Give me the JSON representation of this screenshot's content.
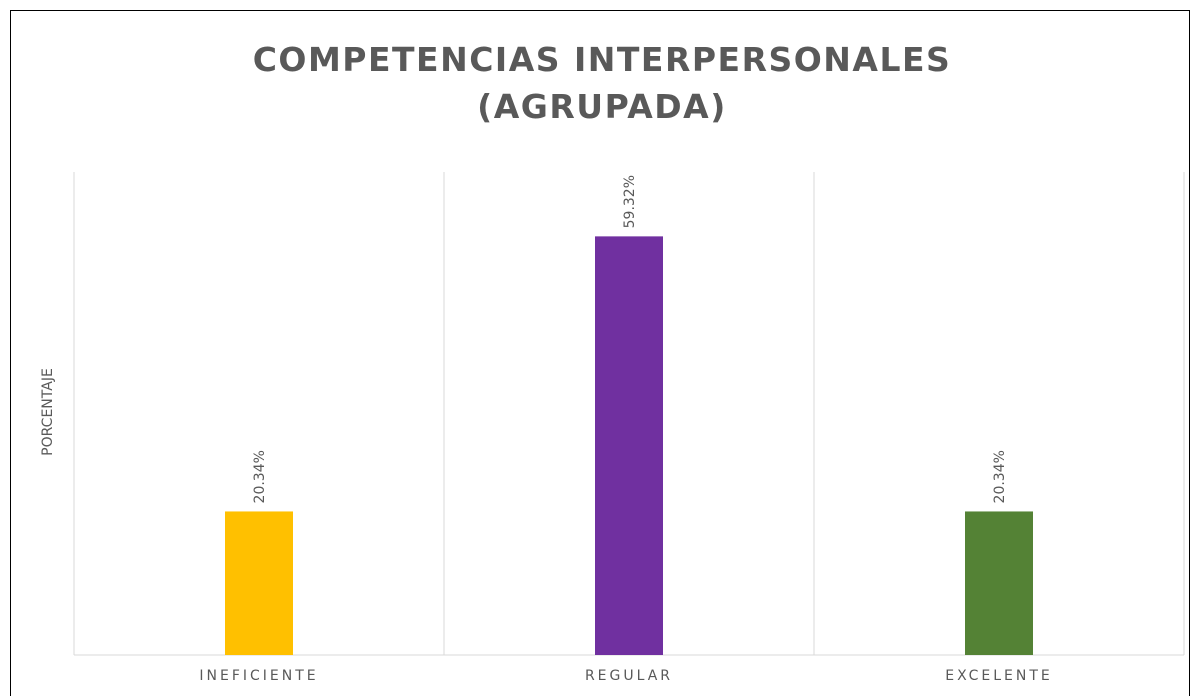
{
  "chart_data": {
    "type": "bar",
    "title": "COMPETENCIAS INTERPERSONALES (AGRUPADA)",
    "y_label": "PORCENTAJE",
    "categories": [
      "INEFICIENTE",
      "REGULAR",
      "EXCELENTE"
    ],
    "values": [
      20.34,
      59.32,
      20.34
    ],
    "value_labels": [
      "20.34%",
      "59.32%",
      "20.34%"
    ],
    "colors": [
      "#FFC000",
      "#7030A0",
      "#548235"
    ],
    "ylim": [
      0,
      70
    ],
    "grid": true
  }
}
